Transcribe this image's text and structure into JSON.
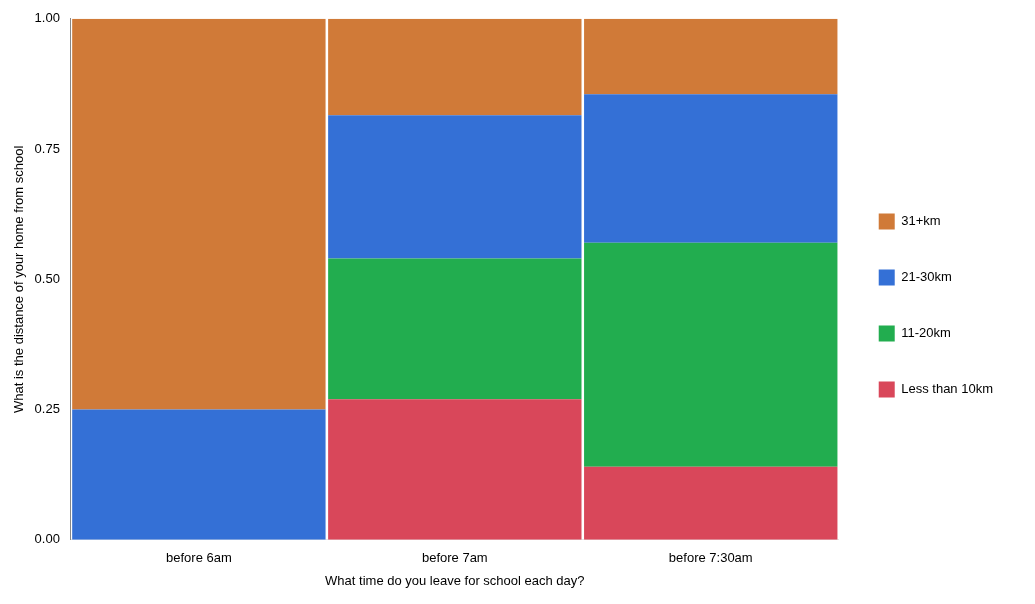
{
  "chart_data": {
    "type": "bar",
    "stacked": true,
    "xlabel": "What time do you leave for school each day?",
    "ylabel": "What is the distance of your home from school",
    "categories": [
      "before 6am",
      "before 7am",
      "before 7:30am"
    ],
    "series": [
      {
        "name": "Less than 10km",
        "color": "#d9475a",
        "values": [
          0,
          0.27,
          0.14
        ]
      },
      {
        "name": "11-20km",
        "color": "#22ad4f",
        "values": [
          0,
          0.27,
          0.43
        ]
      },
      {
        "name": "21-30km",
        "color": "#3470d6",
        "values": [
          0.25,
          0.275,
          0.285
        ]
      },
      {
        "name": "31+km",
        "color": "#d07a38",
        "values": [
          0.75,
          0.185,
          0.145
        ]
      }
    ],
    "ylim": [
      0,
      1
    ],
    "yticks": [
      {
        "value": 0,
        "label": "0.00"
      },
      {
        "value": 0.25,
        "label": "0.25"
      },
      {
        "value": 0.5,
        "label": "0.50"
      },
      {
        "value": 0.75,
        "label": "0.75"
      },
      {
        "value": 1,
        "label": "1.00"
      }
    ],
    "grid": false,
    "legend": "right"
  }
}
